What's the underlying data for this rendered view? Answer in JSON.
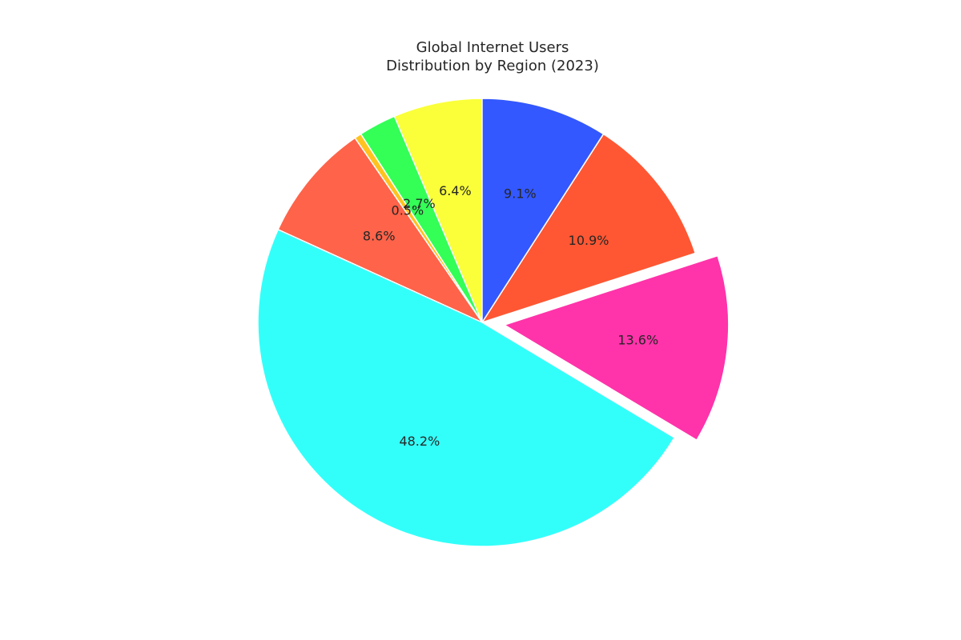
{
  "chart_data": {
    "type": "pie",
    "title_lines": [
      "Global Internet Users",
      "Distribution by Region (2023)"
    ],
    "start_angle": 90,
    "direction": "counterclockwise",
    "legend": "none",
    "slices": [
      {
        "value": 6.4,
        "label": "6.4%",
        "color": "#FAFF3A",
        "explode": 0
      },
      {
        "value": 2.7,
        "label": "2.7%",
        "color": "#33FF57",
        "explode": 0
      },
      {
        "value": 0.5,
        "label": "0.5%",
        "color": "#FFC31F",
        "explode": 0
      },
      {
        "value": 8.6,
        "label": "8.6%",
        "color": "#FF6349",
        "explode": 0
      },
      {
        "value": 48.2,
        "label": "48.2%",
        "color": "#33FFFA",
        "explode": 0
      },
      {
        "value": 13.6,
        "label": "13.6%",
        "color": "#FF33AA",
        "explode": 0.1
      },
      {
        "value": 10.9,
        "label": "10.9%",
        "color": "#FF5733",
        "explode": 0
      },
      {
        "value": 9.1,
        "label": "9.1%",
        "color": "#3358FF",
        "explode": 0
      }
    ]
  }
}
